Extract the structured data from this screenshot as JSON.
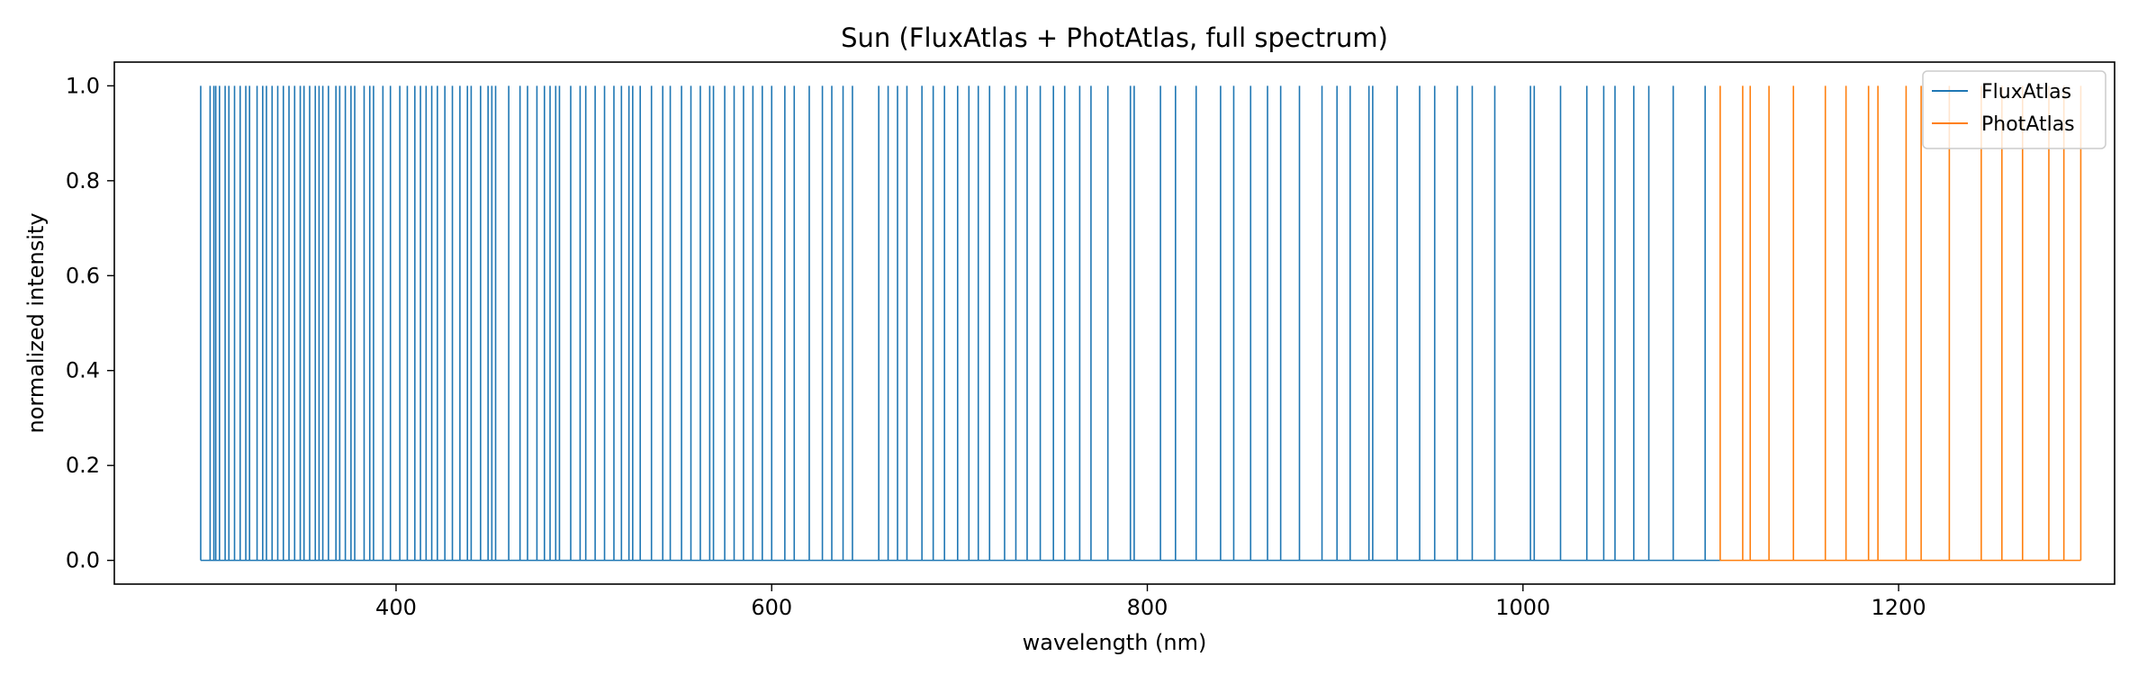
{
  "chart_data": {
    "type": "line",
    "title": "Sun (FluxAtlas + PhotAtlas, full spectrum)",
    "xlabel": "wavelength (nm)",
    "ylabel": "normalized intensity",
    "xlim": [
      250,
      1315
    ],
    "ylim": [
      -0.05,
      1.05
    ],
    "xticks": [
      400,
      600,
      800,
      1000,
      1200
    ],
    "yticks": [
      0.0,
      0.2,
      0.4,
      0.6,
      0.8,
      1.0
    ],
    "xtick_labels": [
      "400",
      "600",
      "800",
      "1000",
      "1200"
    ],
    "ytick_labels": [
      "0.0",
      "0.2",
      "0.4",
      "0.6",
      "0.8",
      "1.0"
    ],
    "grid": false,
    "legend_position": "top-right",
    "series": [
      {
        "name": "FluxAtlas",
        "color": "#1f77b4",
        "x_range": [
          296,
          1105
        ],
        "baseline": 0.0,
        "peak": 1.0,
        "line_positions": [
          296,
          301,
          303,
          304,
          306,
          309,
          311,
          314,
          317,
          320,
          322,
          326,
          329,
          331,
          334,
          337,
          340,
          343,
          346,
          349,
          351,
          354,
          357,
          359,
          361,
          364,
          368,
          370,
          373,
          376,
          378,
          383,
          386,
          388,
          393,
          397,
          402,
          406,
          410,
          413,
          416,
          419,
          422,
          426,
          430,
          434,
          438,
          440,
          445,
          449,
          451,
          453,
          460,
          466,
          470,
          475,
          479,
          482,
          485,
          487,
          493,
          498,
          501,
          506,
          511,
          516,
          520,
          524,
          526,
          530,
          536,
          542,
          546,
          552,
          557,
          562,
          567,
          569,
          575,
          580,
          585,
          590,
          595,
          600,
          607,
          612,
          620,
          627,
          632,
          638,
          643,
          657,
          662,
          667,
          672,
          680,
          686,
          692,
          699,
          705,
          710,
          716,
          724,
          730,
          736,
          743,
          750,
          756,
          764,
          770,
          779,
          791,
          793,
          807,
          815,
          826,
          839,
          846,
          855,
          864,
          871,
          881,
          893,
          901,
          908,
          918,
          920,
          933,
          945,
          953,
          965,
          973,
          985,
          1004,
          1006,
          1020,
          1034,
          1043,
          1049,
          1059,
          1067,
          1080,
          1097
        ]
      },
      {
        "name": "PhotAtlas",
        "color": "#ff7f0e",
        "x_range": [
          1105,
          1297
        ],
        "baseline": 0.0,
        "peak": 1.0,
        "line_positions": [
          1105,
          1117,
          1121,
          1131,
          1144,
          1161,
          1172,
          1184,
          1189,
          1204,
          1212,
          1227,
          1244,
          1255,
          1266,
          1280,
          1288,
          1297
        ]
      }
    ]
  }
}
